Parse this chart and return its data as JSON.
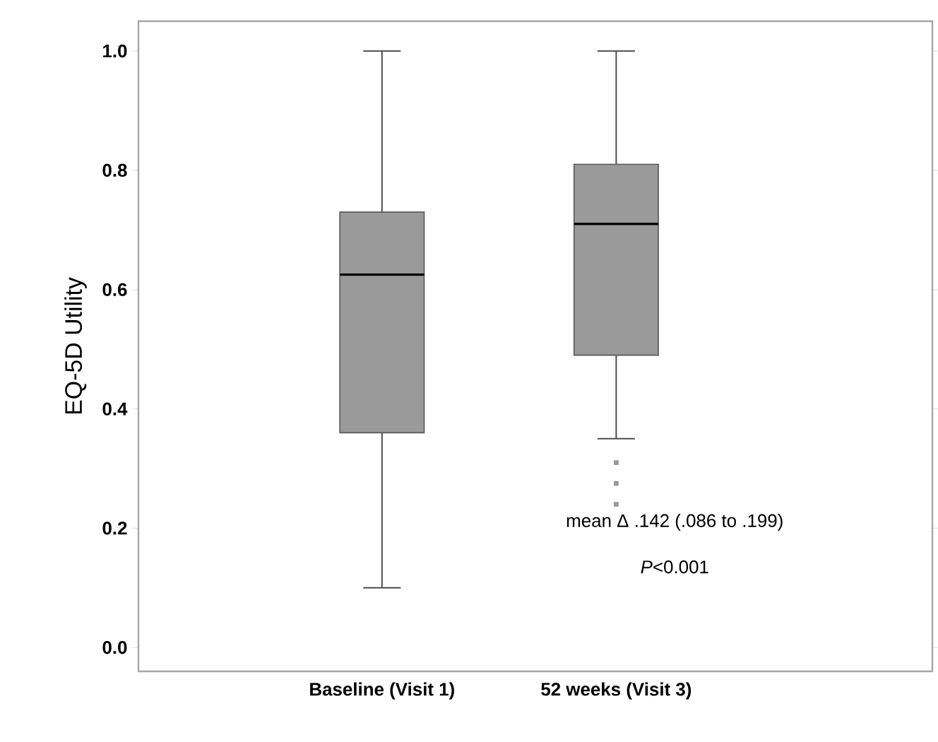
{
  "chart_data": {
    "type": "box",
    "ylabel": "EQ-5D Utility",
    "categories": [
      "Baseline (Visit 1)",
      "52 weeks (Visit 3)"
    ],
    "series": [
      {
        "color": "#9a9a9a",
        "boxes": [
          {
            "low": 0.1,
            "q1": 0.36,
            "median": 0.625,
            "q3": 0.73,
            "high": 1.0
          },
          {
            "low": 0.35,
            "q1": 0.49,
            "median": 0.71,
            "q3": 0.81,
            "high": 1.0,
            "outliers": [
              0.31,
              0.275,
              0.24
            ]
          }
        ]
      }
    ],
    "ylim": [
      -0.04,
      1.05
    ],
    "yticks": [
      {
        "value": 0,
        "label": "0.0"
      },
      {
        "value": 0.2,
        "label": "0.2"
      },
      {
        "value": 0.4,
        "label": "0.4"
      },
      {
        "value": 0.6,
        "label": "0.6"
      },
      {
        "value": 0.8,
        "label": "0.8"
      },
      {
        "value": 1,
        "label": "1.0"
      }
    ],
    "annotations": [
      "mean Δ .142 (.086 to .199)",
      "*P*<0.001"
    ]
  }
}
